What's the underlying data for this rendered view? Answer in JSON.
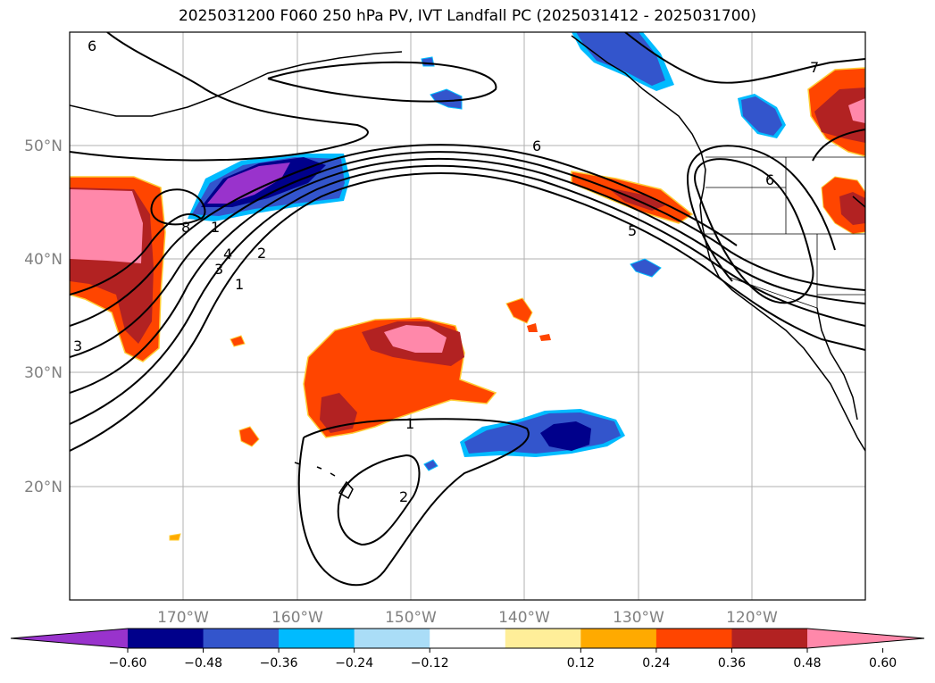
{
  "title": "2025031200 F060 250 hPa PV, IVT Landfall PC (2025031412 - 2025031700)",
  "axes": {
    "lat_labels": [
      "50°N",
      "40°N",
      "30°N",
      "20°N"
    ],
    "lon_labels": [
      "170°W",
      "160°W",
      "150°W",
      "140°W",
      "130°W",
      "120°W"
    ]
  },
  "colorbar": {
    "colors": [
      "#9933cc",
      "#00008b",
      "#3355cc",
      "#00bbff",
      "#aaddf7",
      "#ffffff",
      "#ffee99",
      "#ffaa00",
      "#ff4500",
      "#b22222",
      "#ff88aa"
    ],
    "ticks": [
      "−0.60",
      "−0.48",
      "−0.36",
      "−0.24",
      "−0.12",
      "0.12",
      "0.24",
      "0.36",
      "0.48",
      "0.60"
    ]
  },
  "pv_contour_labels": [
    "6",
    "6",
    "7",
    "6",
    "5",
    "1",
    "2",
    "3",
    "4",
    "8",
    "1",
    "3",
    "1",
    "2"
  ]
}
